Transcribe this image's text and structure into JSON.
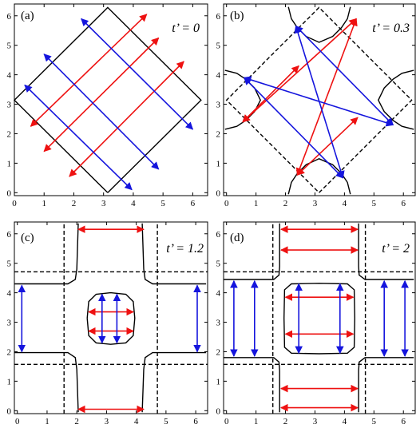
{
  "chart_data": [
    {
      "panel": "(a)",
      "param_label": "t’ = 0",
      "type": "line",
      "xlim": [
        0,
        6.5
      ],
      "ylim": [
        -0.1,
        6.4
      ],
      "xticks": [
        "0",
        "1",
        "2",
        "3",
        "4",
        "5",
        "6"
      ],
      "yticks": [
        "0",
        "1",
        "2",
        "3",
        "4",
        "5",
        "6"
      ],
      "colors": {
        "red": "#ee1111",
        "blue": "#1515dd",
        "curve": "#000000"
      },
      "polylines": [
        {
          "style": "solid",
          "points": [
            [
              3.14,
              0
            ],
            [
              6.28,
              3.14
            ],
            [
              3.14,
              6.28
            ],
            [
              0,
              3.14
            ],
            [
              3.14,
              0
            ]
          ]
        }
      ],
      "arrows": [
        {
          "color": "red",
          "from": [
            0.55,
            2.25
          ],
          "to": [
            4.45,
            6.05
          ]
        },
        {
          "color": "red",
          "from": [
            1.0,
            1.4
          ],
          "to": [
            4.85,
            5.25
          ]
        },
        {
          "color": "red",
          "from": [
            1.85,
            0.55
          ],
          "to": [
            5.7,
            4.45
          ]
        },
        {
          "color": "blue",
          "from": [
            0.35,
            3.65
          ],
          "to": [
            3.95,
            0.1
          ]
        },
        {
          "color": "blue",
          "from": [
            1.0,
            4.7
          ],
          "to": [
            4.85,
            0.8
          ]
        },
        {
          "color": "blue",
          "from": [
            2.25,
            5.9
          ],
          "to": [
            6.0,
            2.15
          ]
        }
      ]
    },
    {
      "panel": "(b)",
      "param_label": "t’ = 0.3",
      "type": "line",
      "xlim": [
        -0.1,
        6.4
      ],
      "ylim": [
        -0.1,
        6.4
      ],
      "xticks": [
        "0",
        "1",
        "2",
        "3",
        "4",
        "5",
        "6"
      ],
      "yticks": [
        "0",
        "1",
        "2",
        "3",
        "4",
        "5",
        "6"
      ],
      "colors": {
        "red": "#ee1111",
        "blue": "#1515dd",
        "curve": "#000000"
      },
      "polylines": [
        {
          "style": "dashed",
          "points": [
            [
              3.14,
              0
            ],
            [
              6.28,
              3.14
            ],
            [
              3.14,
              6.28
            ],
            [
              0,
              3.14
            ],
            [
              3.14,
              0
            ]
          ]
        },
        {
          "style": "solid",
          "points": [
            [
              2.1,
              6.3
            ],
            [
              2.2,
              5.9
            ],
            [
              2.4,
              5.6
            ],
            [
              2.7,
              5.3
            ],
            [
              3.14,
              5.1
            ],
            [
              3.6,
              5.3
            ],
            [
              3.9,
              5.6
            ],
            [
              4.1,
              5.9
            ],
            [
              4.2,
              6.3
            ]
          ]
        },
        {
          "style": "solid",
          "points": [
            [
              2.1,
              -0.05
            ],
            [
              2.2,
              0.35
            ],
            [
              2.4,
              0.65
            ],
            [
              2.7,
              0.95
            ],
            [
              3.14,
              1.15
            ],
            [
              3.6,
              0.95
            ],
            [
              3.9,
              0.65
            ],
            [
              4.1,
              0.35
            ],
            [
              4.2,
              -0.05
            ]
          ]
        },
        {
          "style": "solid",
          "points": [
            [
              -0.05,
              2.15
            ],
            [
              0.35,
              2.25
            ],
            [
              0.65,
              2.45
            ],
            [
              0.95,
              2.75
            ],
            [
              1.15,
              3.14
            ],
            [
              0.95,
              3.55
            ],
            [
              0.65,
              3.85
            ],
            [
              0.35,
              4.05
            ],
            [
              -0.05,
              4.15
            ]
          ]
        },
        {
          "style": "solid",
          "points": [
            [
              6.35,
              2.15
            ],
            [
              5.95,
              2.25
            ],
            [
              5.65,
              2.45
            ],
            [
              5.35,
              2.75
            ],
            [
              5.15,
              3.14
            ],
            [
              5.35,
              3.55
            ],
            [
              5.65,
              3.85
            ],
            [
              5.95,
              4.05
            ],
            [
              6.35,
              4.15
            ]
          ]
        }
      ],
      "arrows": [
        {
          "color": "red",
          "from": [
            0.55,
            2.4
          ],
          "to": [
            2.45,
            4.3
          ]
        },
        {
          "color": "red",
          "from": [
            2.4,
            0.6
          ],
          "to": [
            4.45,
            2.55
          ]
        },
        {
          "color": "red",
          "from": [
            2.4,
            0.6
          ],
          "to": [
            4.4,
            5.9
          ]
        },
        {
          "color": "red",
          "from": [
            0.55,
            2.4
          ],
          "to": [
            4.4,
            5.9
          ]
        },
        {
          "color": "blue",
          "from": [
            0.6,
            3.9
          ],
          "to": [
            3.95,
            0.5
          ]
        },
        {
          "color": "blue",
          "from": [
            2.35,
            5.65
          ],
          "to": [
            5.65,
            2.3
          ]
        },
        {
          "color": "blue",
          "from": [
            0.6,
            3.9
          ],
          "to": [
            5.65,
            2.3
          ]
        },
        {
          "color": "blue",
          "from": [
            2.35,
            5.65
          ],
          "to": [
            3.95,
            0.5
          ]
        }
      ]
    },
    {
      "panel": "(c)",
      "param_label": "t’ = 1.2",
      "type": "line",
      "xlim": [
        -0.1,
        6.4
      ],
      "ylim": [
        -0.1,
        6.4
      ],
      "xticks": [
        "0",
        "1",
        "2",
        "3",
        "4",
        "5",
        "6"
      ],
      "yticks": [
        "0",
        "1",
        "2",
        "3",
        "4",
        "5",
        "6"
      ],
      "colors": {
        "red": "#ee1111",
        "blue": "#1515dd",
        "curve": "#000000"
      },
      "polylines": [
        {
          "style": "dashed",
          "points": [
            [
              1.57,
              -0.1
            ],
            [
              1.57,
              6.4
            ]
          ]
        },
        {
          "style": "dashed",
          "points": [
            [
              4.71,
              -0.1
            ],
            [
              4.71,
              6.4
            ]
          ]
        },
        {
          "style": "dashed",
          "points": [
            [
              -0.1,
              1.57
            ],
            [
              6.4,
              1.57
            ]
          ]
        },
        {
          "style": "dashed",
          "points": [
            [
              -0.1,
              4.71
            ],
            [
              6.4,
              4.71
            ]
          ]
        },
        {
          "style": "solid",
          "points": [
            [
              -0.1,
              4.3
            ],
            [
              1.7,
              4.3
            ],
            [
              1.95,
              4.45
            ],
            [
              2.0,
              4.8
            ],
            [
              2.05,
              6.35
            ]
          ]
        },
        {
          "style": "solid",
          "points": [
            [
              6.35,
              4.3
            ],
            [
              4.55,
              4.3
            ],
            [
              4.3,
              4.45
            ],
            [
              4.25,
              4.8
            ],
            [
              4.2,
              6.35
            ]
          ]
        },
        {
          "style": "solid",
          "points": [
            [
              -0.1,
              1.97
            ],
            [
              1.7,
              1.97
            ],
            [
              1.95,
              1.8
            ],
            [
              2.0,
              1.4
            ],
            [
              2.05,
              -0.05
            ]
          ]
        },
        {
          "style": "solid",
          "points": [
            [
              6.35,
              1.97
            ],
            [
              4.55,
              1.97
            ],
            [
              4.3,
              1.8
            ],
            [
              4.25,
              1.4
            ],
            [
              4.2,
              -0.05
            ]
          ]
        },
        {
          "style": "solid",
          "points": [
            [
              2.35,
              3.14
            ],
            [
              2.4,
              3.7
            ],
            [
              2.65,
              3.95
            ],
            [
              3.14,
              4.0
            ],
            [
              3.65,
              3.95
            ],
            [
              3.9,
              3.7
            ],
            [
              3.95,
              3.14
            ],
            [
              3.9,
              2.55
            ],
            [
              3.65,
              2.3
            ],
            [
              3.14,
              2.25
            ],
            [
              2.65,
              2.3
            ],
            [
              2.4,
              2.55
            ],
            [
              2.35,
              3.14
            ]
          ]
        }
      ],
      "arrows": [
        {
          "color": "red",
          "from": [
            2.05,
            6.15
          ],
          "to": [
            4.25,
            6.15
          ]
        },
        {
          "color": "red",
          "from": [
            2.05,
            0.05
          ],
          "to": [
            4.25,
            0.05
          ]
        },
        {
          "color": "red",
          "from": [
            2.4,
            3.35
          ],
          "to": [
            3.9,
            3.35
          ]
        },
        {
          "color": "red",
          "from": [
            2.4,
            2.7
          ],
          "to": [
            3.9,
            2.7
          ]
        },
        {
          "color": "blue",
          "from": [
            0.15,
            2.0
          ],
          "to": [
            0.15,
            4.25
          ]
        },
        {
          "color": "blue",
          "from": [
            6.05,
            2.0
          ],
          "to": [
            6.05,
            4.25
          ]
        },
        {
          "color": "blue",
          "from": [
            2.85,
            2.3
          ],
          "to": [
            2.85,
            3.95
          ]
        },
        {
          "color": "blue",
          "from": [
            3.35,
            2.3
          ],
          "to": [
            3.35,
            3.95
          ]
        }
      ]
    },
    {
      "panel": "(d)",
      "param_label": "t’ = 2",
      "type": "line",
      "xlim": [
        -0.1,
        6.4
      ],
      "ylim": [
        -0.1,
        6.4
      ],
      "xticks": [
        "0",
        "1",
        "2",
        "3",
        "4",
        "5",
        "6"
      ],
      "yticks": [
        "0",
        "1",
        "2",
        "3",
        "4",
        "5",
        "6"
      ],
      "colors": {
        "red": "#ee1111",
        "blue": "#1515dd",
        "curve": "#000000"
      },
      "polylines": [
        {
          "style": "dashed",
          "points": [
            [
              1.57,
              -0.1
            ],
            [
              1.57,
              6.4
            ]
          ]
        },
        {
          "style": "dashed",
          "points": [
            [
              4.71,
              -0.1
            ],
            [
              4.71,
              6.4
            ]
          ]
        },
        {
          "style": "dashed",
          "points": [
            [
              -0.1,
              1.57
            ],
            [
              6.4,
              1.57
            ]
          ]
        },
        {
          "style": "dashed",
          "points": [
            [
              -0.1,
              4.71
            ],
            [
              6.4,
              4.71
            ]
          ]
        },
        {
          "style": "solid",
          "points": [
            [
              -0.1,
              4.45
            ],
            [
              1.6,
              4.45
            ],
            [
              1.78,
              4.6
            ],
            [
              1.8,
              4.9
            ],
            [
              1.8,
              6.35
            ]
          ]
        },
        {
          "style": "solid",
          "points": [
            [
              6.35,
              4.45
            ],
            [
              4.7,
              4.45
            ],
            [
              4.5,
              4.6
            ],
            [
              4.48,
              4.9
            ],
            [
              4.48,
              6.35
            ]
          ]
        },
        {
          "style": "solid",
          "points": [
            [
              -0.1,
              1.8
            ],
            [
              1.6,
              1.8
            ],
            [
              1.78,
              1.65
            ],
            [
              1.8,
              1.35
            ],
            [
              1.8,
              -0.05
            ]
          ]
        },
        {
          "style": "solid",
          "points": [
            [
              6.35,
              1.8
            ],
            [
              4.7,
              1.8
            ],
            [
              4.5,
              1.65
            ],
            [
              4.48,
              1.35
            ],
            [
              4.48,
              -0.05
            ]
          ]
        },
        {
          "style": "solid",
          "points": [
            [
              1.95,
              3.14
            ],
            [
              1.97,
              4.1
            ],
            [
              2.2,
              4.3
            ],
            [
              3.14,
              4.32
            ],
            [
              4.1,
              4.3
            ],
            [
              4.33,
              4.1
            ],
            [
              4.35,
              3.14
            ],
            [
              4.33,
              2.15
            ],
            [
              4.1,
              1.95
            ],
            [
              3.14,
              1.93
            ],
            [
              2.2,
              1.95
            ],
            [
              1.97,
              2.15
            ],
            [
              1.95,
              3.14
            ]
          ]
        }
      ],
      "arrows": [
        {
          "color": "red",
          "from": [
            1.85,
            6.15
          ],
          "to": [
            4.45,
            6.15
          ]
        },
        {
          "color": "red",
          "from": [
            1.85,
            5.45
          ],
          "to": [
            4.45,
            5.45
          ]
        },
        {
          "color": "red",
          "from": [
            1.85,
            0.75
          ],
          "to": [
            4.45,
            0.75
          ]
        },
        {
          "color": "red",
          "from": [
            1.85,
            0.1
          ],
          "to": [
            4.45,
            0.1
          ]
        },
        {
          "color": "red",
          "from": [
            2.0,
            3.85
          ],
          "to": [
            4.3,
            3.85
          ]
        },
        {
          "color": "red",
          "from": [
            2.0,
            2.6
          ],
          "to": [
            4.3,
            2.6
          ]
        },
        {
          "color": "blue",
          "from": [
            0.25,
            1.85
          ],
          "to": [
            0.25,
            4.4
          ]
        },
        {
          "color": "blue",
          "from": [
            0.95,
            1.85
          ],
          "to": [
            0.95,
            4.4
          ]
        },
        {
          "color": "blue",
          "from": [
            5.35,
            1.85
          ],
          "to": [
            5.35,
            4.4
          ]
        },
        {
          "color": "blue",
          "from": [
            6.05,
            1.85
          ],
          "to": [
            6.05,
            4.4
          ]
        },
        {
          "color": "blue",
          "from": [
            2.45,
            1.95
          ],
          "to": [
            2.45,
            4.3
          ]
        },
        {
          "color": "blue",
          "from": [
            3.85,
            1.95
          ],
          "to": [
            3.85,
            4.3
          ]
        }
      ]
    }
  ]
}
